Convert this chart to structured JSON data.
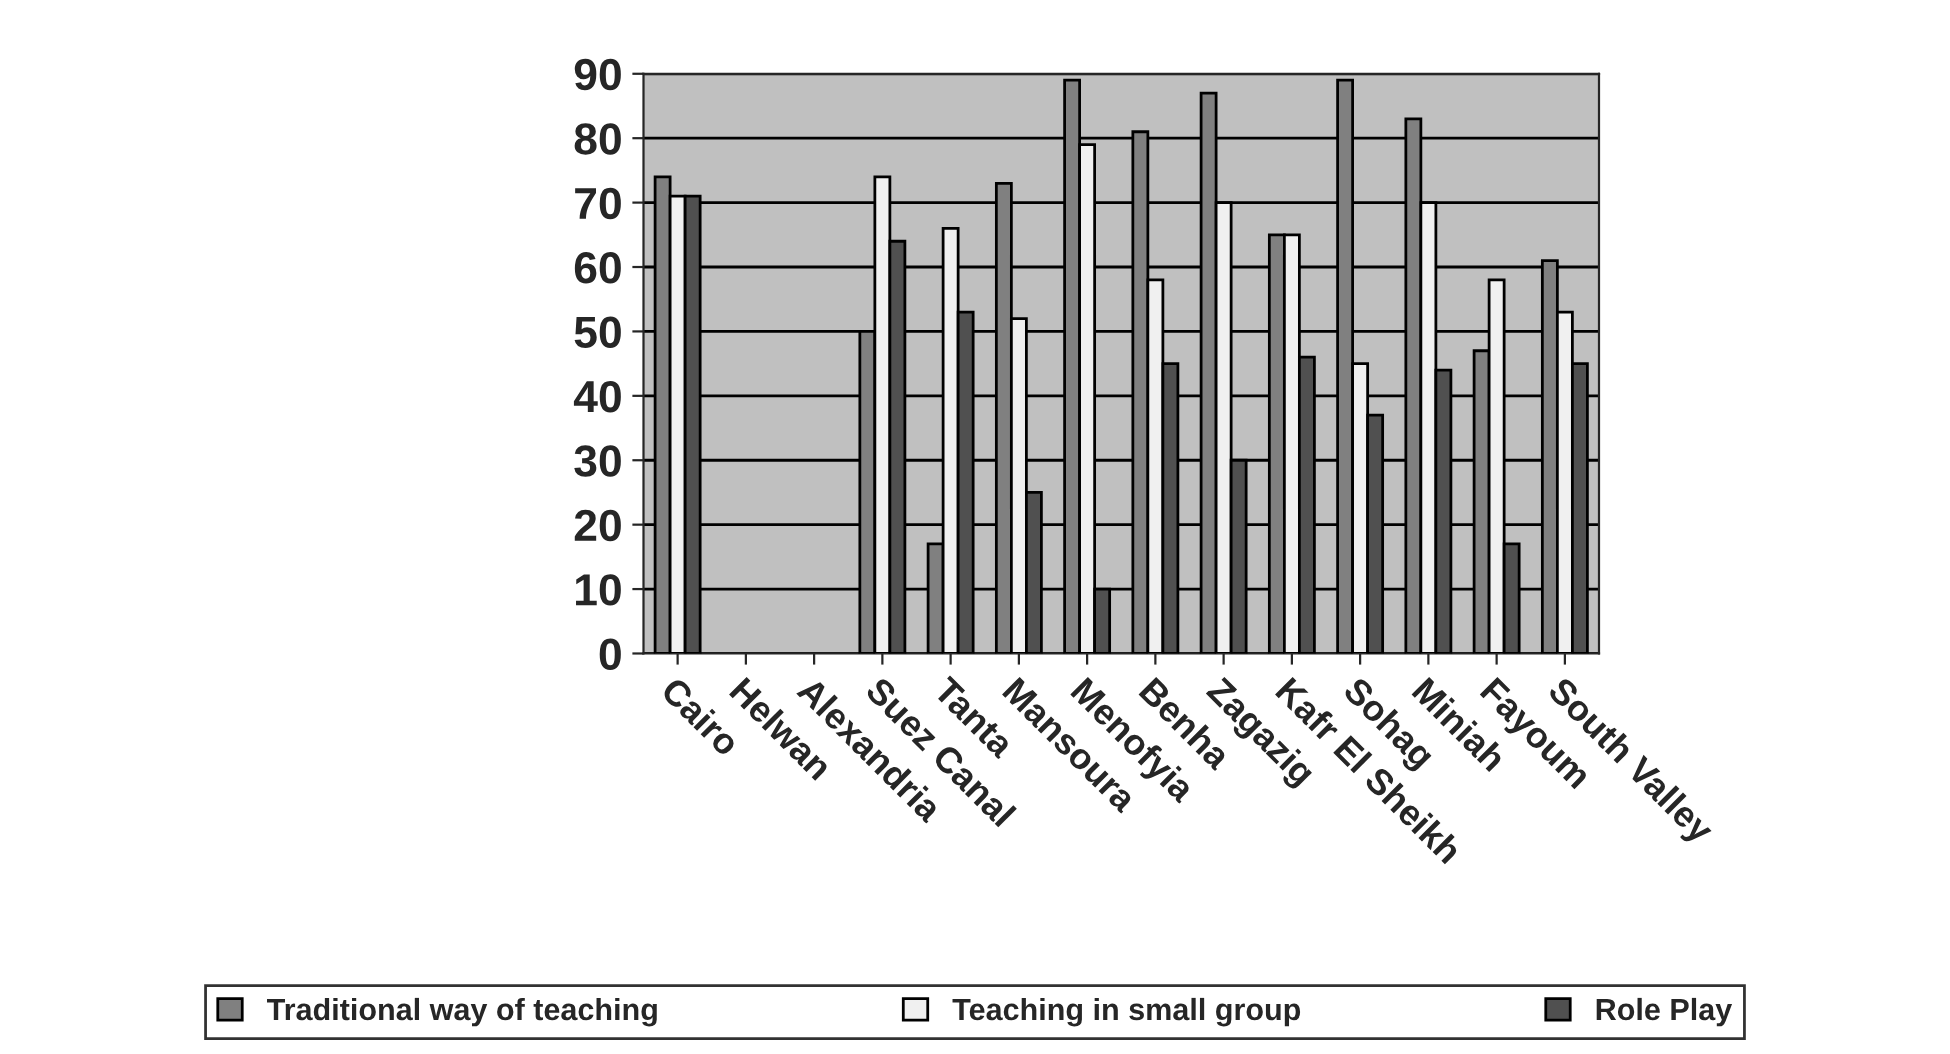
{
  "chart_data": {
    "type": "bar",
    "categories": [
      "Cairo",
      "Helwan",
      "Alexandria",
      "Suez Canal",
      "Tanta",
      "Mansoura",
      "Menofyia",
      "Benha",
      "Zagazig",
      "Kafr El Sheikh",
      "Sohag",
      "Miniah",
      "Fayoum",
      "South Valley"
    ],
    "series": [
      {
        "name": "Traditional way of teaching",
        "color": "#808080",
        "values": [
          74,
          null,
          null,
          50,
          17,
          73,
          89,
          81,
          87,
          65,
          89,
          83,
          47,
          61
        ]
      },
      {
        "name": "Teaching in small group",
        "color": "#f0f0f0",
        "values": [
          71,
          null,
          null,
          74,
          66,
          52,
          79,
          58,
          70,
          65,
          45,
          70,
          58,
          53
        ]
      },
      {
        "name": "Role Play",
        "color": "#505050",
        "values": [
          71,
          null,
          null,
          64,
          53,
          25,
          10,
          45,
          30,
          46,
          37,
          44,
          17,
          45
        ]
      }
    ],
    "ylim": [
      0,
      90
    ],
    "yticks": [
      0,
      10,
      20,
      30,
      40,
      50,
      60,
      70,
      80,
      90
    ],
    "grid": "y",
    "legend": "bottom"
  }
}
